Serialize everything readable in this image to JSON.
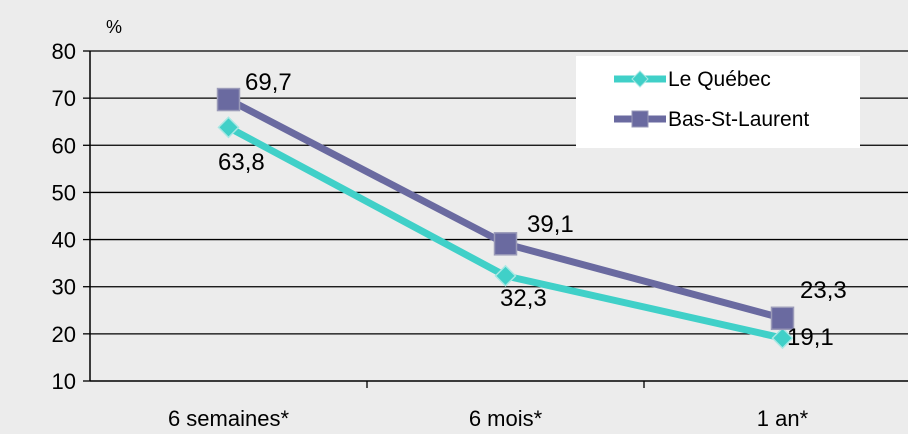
{
  "chart_data": {
    "type": "line",
    "ylabel": "%",
    "categories": [
      "6 semaines*",
      "6 mois*",
      "1 an*"
    ],
    "ylim": [
      10,
      80
    ],
    "yticks": [
      10,
      20,
      30,
      40,
      50,
      60,
      70,
      80
    ],
    "grid": true,
    "legend_position": "top-right",
    "series": [
      {
        "name": "Le Québec",
        "values": [
          63.8,
          32.3,
          19.1
        ],
        "value_labels": [
          "63,8",
          "32,3",
          "19,1"
        ],
        "color": "#40d0c8",
        "marker": "diamond"
      },
      {
        "name": "Bas-St-Laurent",
        "values": [
          69.7,
          39.1,
          23.3
        ],
        "value_labels": [
          "69,7",
          "39,1",
          "23,3"
        ],
        "color": "#6a6aa0",
        "marker": "square"
      }
    ]
  },
  "colors": {
    "background": "#ececec",
    "plot_background": "#ececec",
    "legend_background": "#ffffff",
    "axis": "#000000"
  }
}
